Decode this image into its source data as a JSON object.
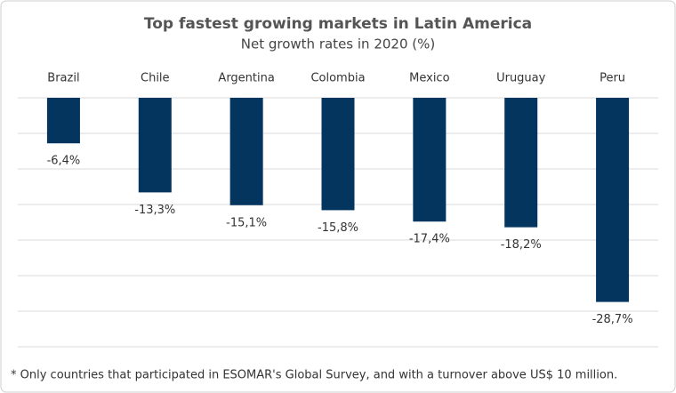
{
  "chart_data": {
    "type": "bar",
    "title": "Top fastest growing markets in Latin America",
    "subtitle": "Net growth rates in 2020 (%)",
    "categories": [
      "Brazil",
      "Chile",
      "Argentina",
      "Colombia",
      "Mexico",
      "Uruguay",
      "Peru"
    ],
    "values": [
      -6.4,
      -13.3,
      -15.1,
      -15.8,
      -17.4,
      -18.2,
      -28.7
    ],
    "value_labels": [
      "-6,4%",
      "-13,3%",
      "-15,1%",
      "-15,8%",
      "-17,4%",
      "-18,2%",
      "-28,7%"
    ],
    "color": "#04355f",
    "ylim": [
      -35,
      0
    ],
    "yticks": [
      0,
      -5,
      -10,
      -15,
      -20,
      -25,
      -30,
      -35
    ],
    "grid": true,
    "footnote": "* Only countries that participated in ESOMAR's Global Survey, and with a turnover above US$ 10 million."
  }
}
